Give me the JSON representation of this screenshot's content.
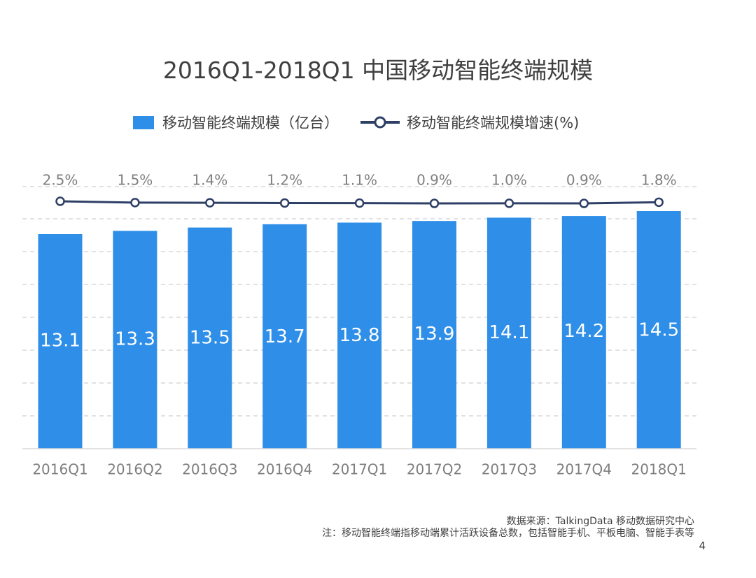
{
  "title": "2016Q1-2018Q1 中国移动智能终端规模",
  "legend": {
    "bar_label": "移动智能终端规模（亿台）",
    "line_label": "移动智能终端规模增速(%)"
  },
  "colors": {
    "bar": "#2f8fe8",
    "line": "#2e3f66",
    "marker_fill": "#ffffff",
    "gridline": "#d9d9d9",
    "text": "#404040",
    "tick_text": "#7f7f7f",
    "bar_label_text": "#ffffff"
  },
  "chart_data": {
    "type": "bar",
    "title": "2016Q1-2018Q1 中国移动智能终端规模",
    "categories": [
      "2016Q1",
      "2016Q2",
      "2016Q3",
      "2016Q4",
      "2017Q1",
      "2017Q2",
      "2017Q3",
      "2017Q4",
      "2018Q1"
    ],
    "series": [
      {
        "name": "移动智能终端规模（亿台）",
        "type": "bar",
        "values": [
          13.1,
          13.3,
          13.5,
          13.7,
          13.8,
          13.9,
          14.1,
          14.2,
          14.5
        ],
        "labels": [
          "13.1",
          "13.3",
          "13.5",
          "13.7",
          "13.8",
          "13.9",
          "14.1",
          "14.2",
          "14.5"
        ]
      },
      {
        "name": "移动智能终端规模增速(%)",
        "type": "line",
        "values": [
          2.5,
          1.5,
          1.4,
          1.2,
          1.1,
          0.9,
          1.0,
          0.9,
          1.8
        ],
        "labels": [
          "2.5%",
          "1.5%",
          "1.4%",
          "1.2%",
          "1.1%",
          "0.9%",
          "1.0%",
          "0.9%",
          "1.8%"
        ]
      }
    ],
    "grid": true,
    "legend_position": "top"
  },
  "footer": {
    "source": "数据来源：TalkingData 移动数据研究中心",
    "note": "注：移动智能终端指移动端累计活跃设备总数，包括智能手机、平板电脑、智能手表等",
    "page_number": "4"
  }
}
